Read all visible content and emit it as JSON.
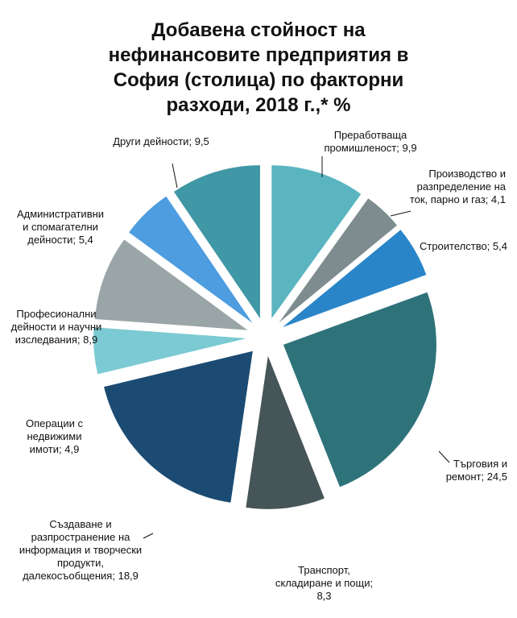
{
  "chart_data": {
    "type": "pie",
    "title": "Добавена стойност на нефинансовите предприятия в София (столица) по факторни разходи, 2018 г.,* %",
    "categories": [
      "Преработваща промишленост;",
      "Производство и разпределение на ток, парно и газ;",
      "Строителство;",
      "Търговия и ремонт;",
      "Транспорт, складиране и пощи;",
      "Създаване и разпространение на информация и творчески продукти, далекосъобщения;",
      "Операции с недвижими имоти;",
      "Професионални дейности и научни изследвания;",
      "Административни и спомагателни дейности;",
      "Други дейности;"
    ],
    "values": [
      9.9,
      4.1,
      5.4,
      24.5,
      8.3,
      18.9,
      4.9,
      8.9,
      5.4,
      9.5
    ],
    "value_labels": [
      "9,9",
      "4,1",
      "5,4",
      "24,5",
      "8,3",
      "18,9",
      "4,9",
      "8,9",
      "5,4",
      "9,5"
    ],
    "colors": [
      "#5ab5c1",
      "#7f8c8f",
      "#2a85c8",
      "#2e737a",
      "#465557",
      "#1b4b72",
      "#7ccad3",
      "#9aa5a7",
      "#4d9de0",
      "#4097a5"
    ]
  }
}
